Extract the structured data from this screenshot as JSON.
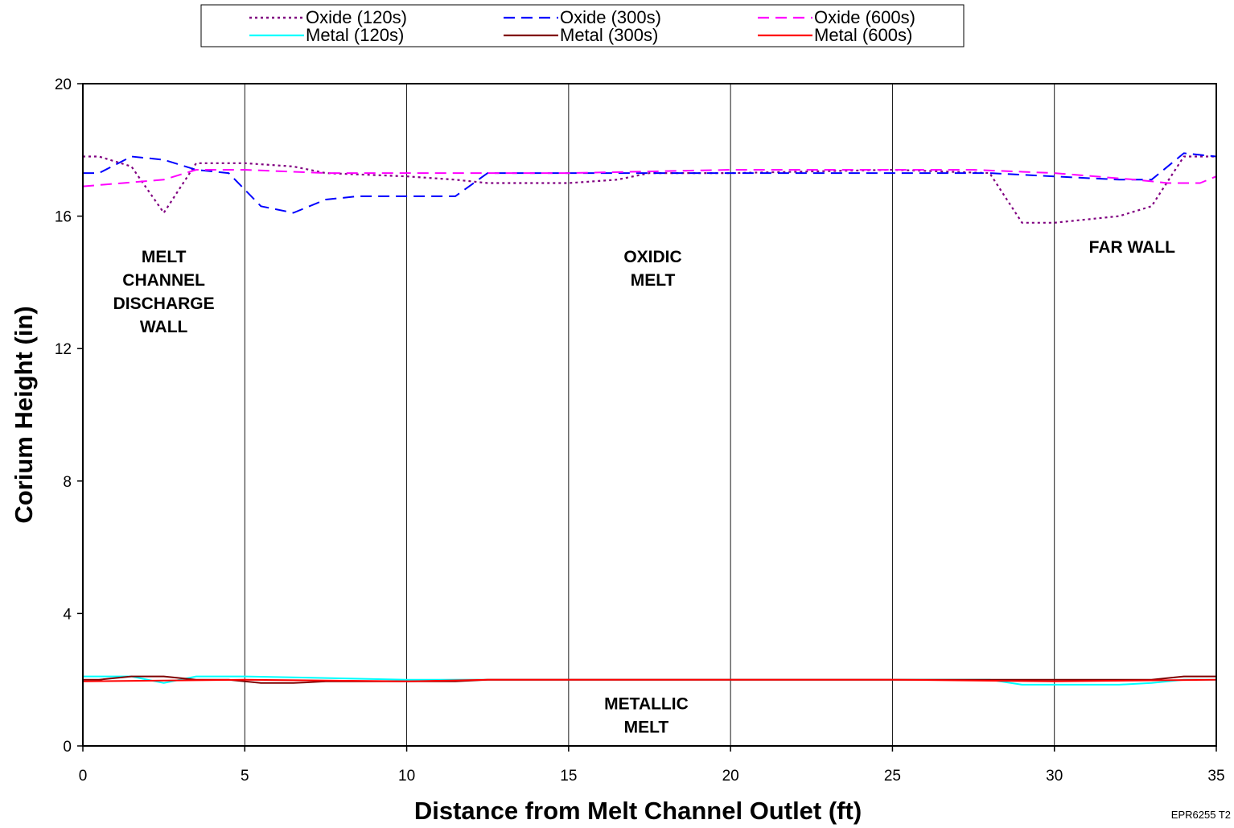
{
  "chart_data": {
    "type": "line",
    "title": "",
    "xlabel": "Distance from Melt Channel Outlet (ft)",
    "ylabel": "Corium Height (in)",
    "xlim": [
      0,
      35
    ],
    "ylim": [
      0,
      20
    ],
    "xticks": [
      0,
      5,
      10,
      15,
      20,
      25,
      30,
      35
    ],
    "yticks": [
      0,
      4,
      8,
      12,
      16,
      20
    ],
    "grid": "vertical lines at x ticks",
    "legend_position": "top-center above plot",
    "series": [
      {
        "name": "Oxide (120s)",
        "color": "#800080",
        "style": "dotted",
        "x": [
          0,
          0.5,
          1.5,
          2.5,
          3.5,
          5,
          6.5,
          7.5,
          10,
          11.5,
          12.5,
          15,
          16.5,
          17.5,
          20,
          25,
          28,
          29,
          30,
          32,
          33,
          34,
          35
        ],
        "y": [
          17.8,
          17.8,
          17.5,
          16.1,
          17.6,
          17.6,
          17.5,
          17.3,
          17.2,
          17.1,
          17.0,
          17.0,
          17.1,
          17.3,
          17.3,
          17.4,
          17.3,
          15.8,
          15.8,
          16.0,
          16.3,
          17.8,
          17.8
        ]
      },
      {
        "name": "Oxide (300s)",
        "color": "#0000FF",
        "style": "dashed",
        "x": [
          0,
          0.5,
          1.5,
          2.5,
          3.5,
          4.5,
          5.5,
          6.5,
          7.5,
          8.5,
          10,
          11.5,
          12.5,
          15,
          17.5,
          20,
          25,
          27,
          28,
          30,
          32,
          33,
          34,
          35
        ],
        "y": [
          17.3,
          17.3,
          17.8,
          17.7,
          17.4,
          17.3,
          16.3,
          16.1,
          16.5,
          16.6,
          16.6,
          16.6,
          17.3,
          17.3,
          17.3,
          17.3,
          17.3,
          17.3,
          17.3,
          17.2,
          17.1,
          17.1,
          17.9,
          17.8
        ]
      },
      {
        "name": "Oxide (600s)",
        "color": "#FF00FF",
        "style": "dashed",
        "x": [
          0,
          2.5,
          3.5,
          5,
          7.5,
          10,
          15,
          20,
          25,
          27.5,
          30,
          32.5,
          33.5,
          34.5,
          35
        ],
        "y": [
          16.9,
          17.1,
          17.4,
          17.4,
          17.3,
          17.3,
          17.3,
          17.4,
          17.4,
          17.4,
          17.3,
          17.1,
          17.0,
          17.0,
          17.2
        ]
      },
      {
        "name": "Metal (120s)",
        "color": "#00FFFF",
        "style": "solid",
        "x": [
          0,
          1.5,
          2.5,
          3.5,
          5,
          10,
          15,
          20,
          25,
          28,
          29,
          30,
          32,
          33,
          34,
          35
        ],
        "y": [
          2.1,
          2.1,
          1.9,
          2.1,
          2.1,
          2.0,
          2.0,
          2.0,
          2.0,
          2.0,
          1.85,
          1.85,
          1.85,
          1.9,
          2.0,
          2.0
        ]
      },
      {
        "name": "Metal (300s)",
        "color": "#800000",
        "style": "solid",
        "x": [
          0,
          0.5,
          1.5,
          2.5,
          3.5,
          4.5,
          5.5,
          6.5,
          7.5,
          10,
          11.5,
          12.5,
          15,
          20,
          25,
          30,
          33,
          34,
          35
        ],
        "y": [
          2.0,
          2.0,
          2.1,
          2.1,
          2.0,
          2.0,
          1.9,
          1.9,
          1.95,
          1.95,
          1.95,
          2.0,
          2.0,
          2.0,
          2.0,
          2.0,
          2.0,
          2.1,
          2.1
        ]
      },
      {
        "name": "Metal (600s)",
        "color": "#FF0000",
        "style": "solid",
        "x": [
          0,
          5,
          10,
          12.5,
          15,
          20,
          25,
          30,
          35
        ],
        "y": [
          1.95,
          2.0,
          1.95,
          2.0,
          2.0,
          2.0,
          2.0,
          1.95,
          2.0
        ]
      }
    ],
    "annotations": [
      {
        "lines": [
          "MELT",
          "CHANNEL",
          "DISCHARGE",
          "WALL"
        ],
        "x": 2.5,
        "y": 14.6
      },
      {
        "lines": [
          "OXIDIC",
          "MELT"
        ],
        "x": 17.6,
        "y": 14.6
      },
      {
        "lines": [
          "FAR WALL"
        ],
        "x": 32.4,
        "y": 14.9
      },
      {
        "lines": [
          "METALLIC",
          "MELT"
        ],
        "x": 17.4,
        "y": 1.1
      }
    ],
    "footnote": "EPR6255 T2"
  }
}
